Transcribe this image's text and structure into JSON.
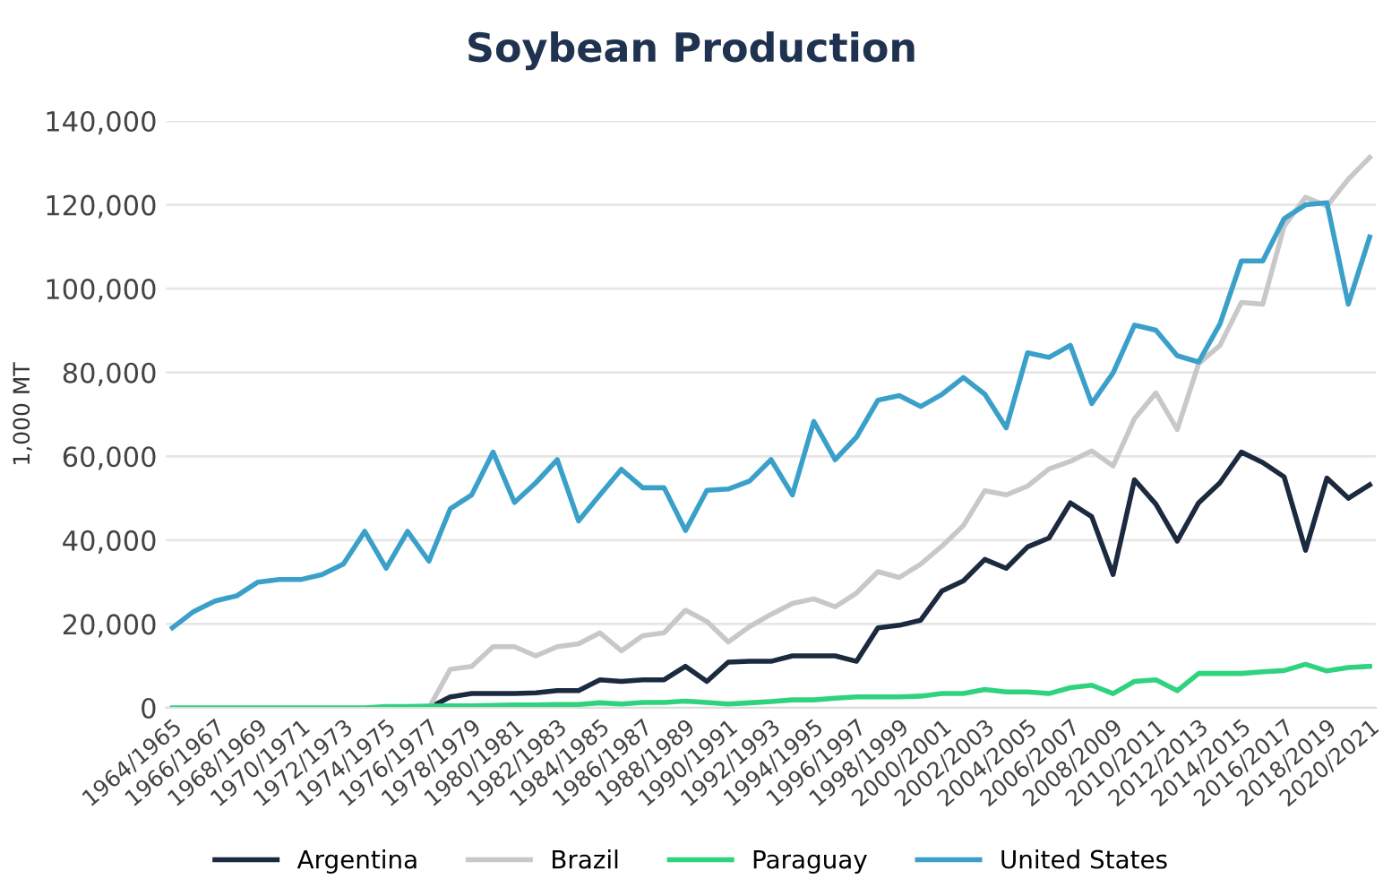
{
  "chart_data": {
    "type": "line",
    "title": "Soybean Production",
    "ylabel": "1,000 MT",
    "categories": [
      "1964/1965",
      null,
      "1966/1967",
      null,
      "1968/1969",
      null,
      "1970/1971",
      null,
      "1972/1973",
      null,
      "1974/1975",
      null,
      "1976/1977",
      null,
      "1978/1979",
      null,
      "1980/1981",
      null,
      "1982/1983",
      null,
      "1984/1985",
      null,
      "1986/1987",
      null,
      "1988/1989",
      null,
      "1990/1991",
      null,
      "1992/1993",
      null,
      "1994/1995",
      null,
      "1996/1997",
      null,
      "1998/1999",
      null,
      "2000/2001",
      null,
      "2002/2003",
      null,
      "2004/2005",
      null,
      "2006/2007",
      null,
      "2008/2009",
      null,
      "2010/2011",
      null,
      "2012/2013",
      null,
      "2014/2015",
      null,
      "2016/2017",
      null,
      "2018/2019",
      null,
      "2020/2021"
    ],
    "series": [
      {
        "name": "Argentina",
        "color": "#1b2a3f",
        "values": [
          null,
          null,
          null,
          null,
          null,
          null,
          null,
          null,
          null,
          null,
          null,
          null,
          0,
          2600,
          3400,
          3400,
          3400,
          3600,
          4100,
          4100,
          6700,
          6300,
          6700,
          6700,
          9900,
          6300,
          10900,
          11100,
          11100,
          12400,
          12400,
          12400,
          11100,
          19100,
          19700,
          20900,
          27900,
          30300,
          35400,
          33300,
          38400,
          40500,
          48900,
          45600,
          31800,
          54400,
          48600,
          39800,
          48900,
          53700,
          61000,
          58500,
          55100,
          37600,
          54800,
          50000,
          53200
        ]
      },
      {
        "name": "Brazil",
        "color": "#c8c8c8",
        "values": [
          null,
          null,
          null,
          null,
          null,
          null,
          null,
          null,
          null,
          null,
          null,
          null,
          0,
          9200,
          9900,
          14600,
          14600,
          12400,
          14600,
          15300,
          17900,
          13600,
          17200,
          17900,
          23300,
          20600,
          15700,
          19400,
          22300,
          24900,
          26000,
          24100,
          27400,
          32500,
          31100,
          34300,
          38600,
          43500,
          51800,
          50800,
          52900,
          57000,
          58800,
          61300,
          57700,
          69000,
          75100,
          66400,
          82100,
          86500,
          96700,
          96300,
          114900,
          121800,
          119700,
          126100,
          131300
        ]
      },
      {
        "name": "Paraguay",
        "color": "#2fd37e",
        "values": [
          0,
          0,
          0,
          0,
          0,
          0,
          0,
          0,
          0,
          0,
          300,
          300,
          400,
          500,
          500,
          600,
          700,
          700,
          800,
          800,
          1200,
          900,
          1300,
          1300,
          1600,
          1300,
          900,
          1200,
          1500,
          1900,
          1900,
          2300,
          2600,
          2600,
          2600,
          2800,
          3400,
          3400,
          4400,
          3800,
          3800,
          3400,
          4800,
          5400,
          3400,
          6300,
          6700,
          4100,
          8200,
          8200,
          8200,
          8600,
          8900,
          10400,
          8800,
          9600,
          9900
        ]
      },
      {
        "name": "United States",
        "color": "#3aa0c9",
        "values": [
          19100,
          23000,
          25500,
          26700,
          30000,
          30600,
          30600,
          31800,
          34300,
          42100,
          33300,
          42100,
          35000,
          47500,
          50800,
          61000,
          49000,
          53700,
          59200,
          44600,
          50800,
          56900,
          52500,
          52500,
          42300,
          51900,
          52200,
          54100,
          59200,
          50800,
          68300,
          59200,
          64600,
          73400,
          74500,
          71900,
          74800,
          78800,
          74800,
          66800,
          84700,
          83600,
          86500,
          72600,
          79900,
          91300,
          90100,
          84000,
          82500,
          91600,
          106600,
          106600,
          116700,
          120000,
          120500,
          96300,
          112300
        ]
      }
    ],
    "ylim": [
      0,
      140000
    ],
    "yticks": [
      {
        "value": 0,
        "label": "0"
      },
      {
        "value": 20000,
        "label": "20,000"
      },
      {
        "value": 40000,
        "label": "40,000"
      },
      {
        "value": 60000,
        "label": "60,000"
      },
      {
        "value": 80000,
        "label": "80,000"
      },
      {
        "value": 100000,
        "label": "100,000"
      },
      {
        "value": 120000,
        "label": "120,000"
      },
      {
        "value": 140000,
        "label": "140,000"
      }
    ],
    "grid": "y",
    "legend": "bottom",
    "marker": "none",
    "line_style": "solid"
  }
}
